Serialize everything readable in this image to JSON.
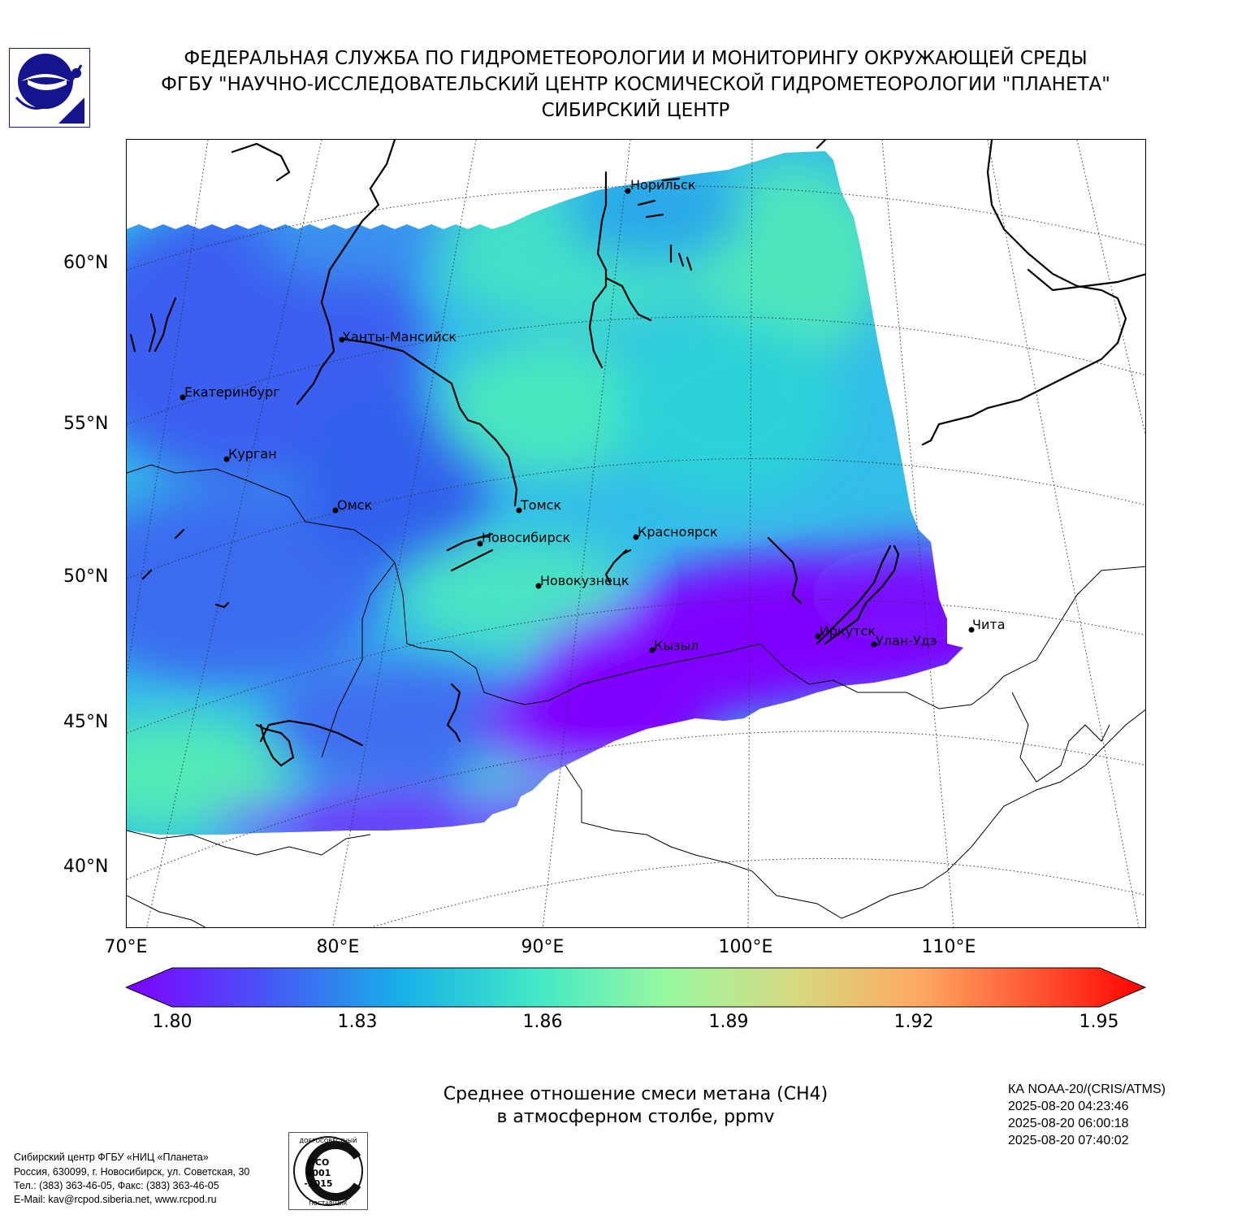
{
  "header": {
    "line1": "ФЕДЕРАЛЬНАЯ СЛУЖБА ПО ГИДРОМЕТЕОРОЛОГИИ И МОНИТОРИНГУ ОКРУЖАЮЩЕЙ СРЕДЫ",
    "line2": "ФГБУ \"НАУЧНО-ИССЛЕДОВАТЕЛЬСКИЙ ЦЕНТР КОСМИЧЕСКОЙ ГИДРОМЕТЕОРОЛОГИИ \"ПЛАНЕТА\"",
    "line3": "СИБИРСКИЙ ЦЕНТР"
  },
  "map": {
    "lat_labels": [
      "60°N",
      "55°N",
      "50°N",
      "45°N",
      "40°N"
    ],
    "lon_labels": [
      "70°E",
      "80°E",
      "90°E",
      "100°E",
      "110°E"
    ],
    "cities": [
      {
        "name": "Норильск"
      },
      {
        "name": "Ханты-Мансийск"
      },
      {
        "name": "Екатеринбург"
      },
      {
        "name": "Курган"
      },
      {
        "name": "Омск"
      },
      {
        "name": "Томск"
      },
      {
        "name": "Новосибирск"
      },
      {
        "name": "Красноярск"
      },
      {
        "name": "Новокузнецк"
      },
      {
        "name": "Кызыл"
      },
      {
        "name": "Иркутск"
      },
      {
        "name": "Улан-Удэ"
      },
      {
        "name": "Чита"
      }
    ],
    "colors": {
      "low": "#7f00ff",
      "blue": "#3a5ef0",
      "cyan": "#20c8e0",
      "aqua": "#40e8c8",
      "high": "#ff0000"
    }
  },
  "colorbar": {
    "min": 1.8,
    "max": 1.95,
    "ticks": [
      "1.80",
      "1.83",
      "1.86",
      "1.89",
      "1.92",
      "1.95"
    ]
  },
  "caption": {
    "line1": "Среднее отношение смеси метана (CH4)",
    "line2": "в атмосферном столбе, ppmv"
  },
  "meta": {
    "satellite": "КА NOAA-20/(CRIS/ATMS)",
    "times": [
      "2025-08-20 04:23:46",
      "2025-08-20 06:00:18",
      "2025-08-20 07:40:02"
    ]
  },
  "footer": {
    "lines": [
      "Сибирский центр ФГБУ «НИЦ «Планета»",
      "Россия, 630099, г. Новосибирск, ул. Советская, 30",
      "Тел.: (383) 363-46-05, Факс: (383) 363-46-05",
      "E-Mail: kav@rcpod.siberia.net, www.rcpod.ru"
    ],
    "iso_badge": {
      "top": "ДОБРОСОВЕСТНЫЙ",
      "mid1": "ИСО",
      "mid2": "9001",
      "mid3": "-2015",
      "bottom": "ПОСТАВЩИК"
    }
  }
}
